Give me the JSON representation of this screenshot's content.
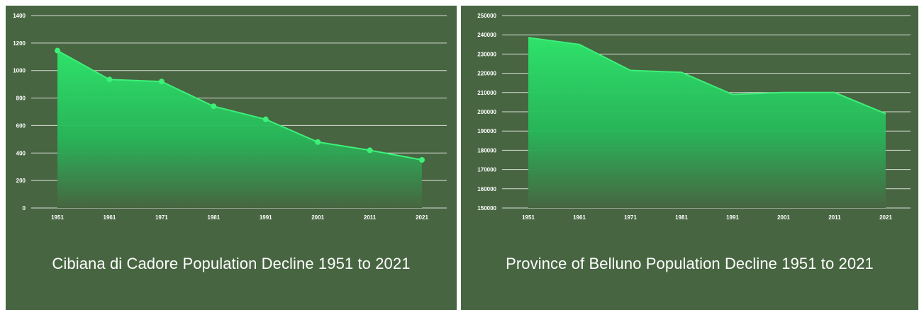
{
  "colors": {
    "panel_background": "#476541",
    "area_top": "#2ee26a",
    "area_bottom": "#476541",
    "line": "#3cf078",
    "point": "#3cf078",
    "grid": "#d8dcd6",
    "text": "#ffffff"
  },
  "chart_data": [
    {
      "type": "area",
      "title": "Cibiana di Cadore Population Decline 1951 to 2021",
      "xlabel": "",
      "ylabel": "",
      "categories": [
        "1951",
        "1961",
        "1971",
        "1981",
        "1991",
        "2001",
        "2011",
        "2021"
      ],
      "series": [
        {
          "values": [
            1145,
            935,
            920,
            740,
            645,
            480,
            420,
            350
          ]
        }
      ],
      "ylim": [
        0,
        1400
      ],
      "yticks": [
        0,
        200,
        400,
        600,
        800,
        1000,
        1200,
        1400
      ],
      "markers": true,
      "grid": true,
      "legend": "none"
    },
    {
      "type": "area",
      "title": "Province of Belluno Population Decline 1951 to 2021",
      "xlabel": "",
      "ylabel": "",
      "categories": [
        "1951",
        "1961",
        "1971",
        "1981",
        "1991",
        "2001",
        "2011",
        "2021"
      ],
      "series": [
        {
          "values": [
            238500,
            235000,
            221500,
            220500,
            209000,
            210000,
            210000,
            199000
          ]
        }
      ],
      "ylim": [
        150000,
        250000
      ],
      "yticks": [
        150000,
        160000,
        170000,
        180000,
        190000,
        200000,
        210000,
        220000,
        230000,
        240000,
        250000
      ],
      "markers": false,
      "grid": true,
      "legend": "none"
    }
  ]
}
